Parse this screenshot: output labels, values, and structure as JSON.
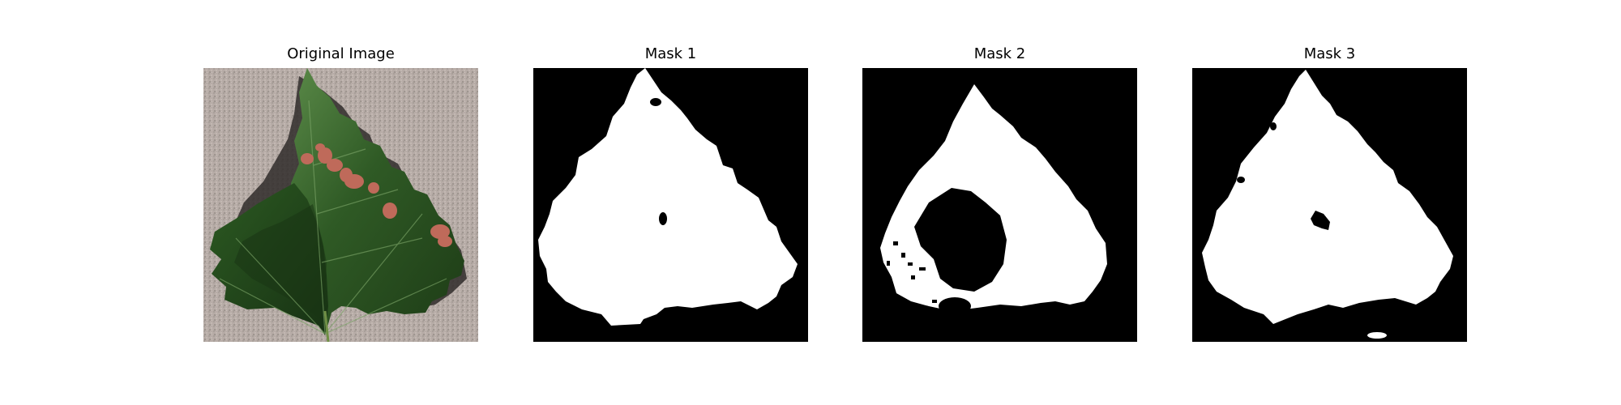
{
  "figure": {
    "panels": [
      {
        "title": "Original Image",
        "kind": "photo"
      },
      {
        "title": "Mask 1",
        "kind": "mask"
      },
      {
        "title": "Mask 2",
        "kind": "mask"
      },
      {
        "title": "Mask 3",
        "kind": "mask"
      }
    ],
    "colors": {
      "background": "#ffffff",
      "mask_foreground": "#ffffff",
      "mask_background": "#000000",
      "photo_backdrop": "#b6aba6",
      "leaf_dark": "#1f3f17",
      "leaf_mid": "#2e5a24",
      "leaf_light": "#5f8f4c",
      "lesion": "#bf6a5a"
    }
  }
}
